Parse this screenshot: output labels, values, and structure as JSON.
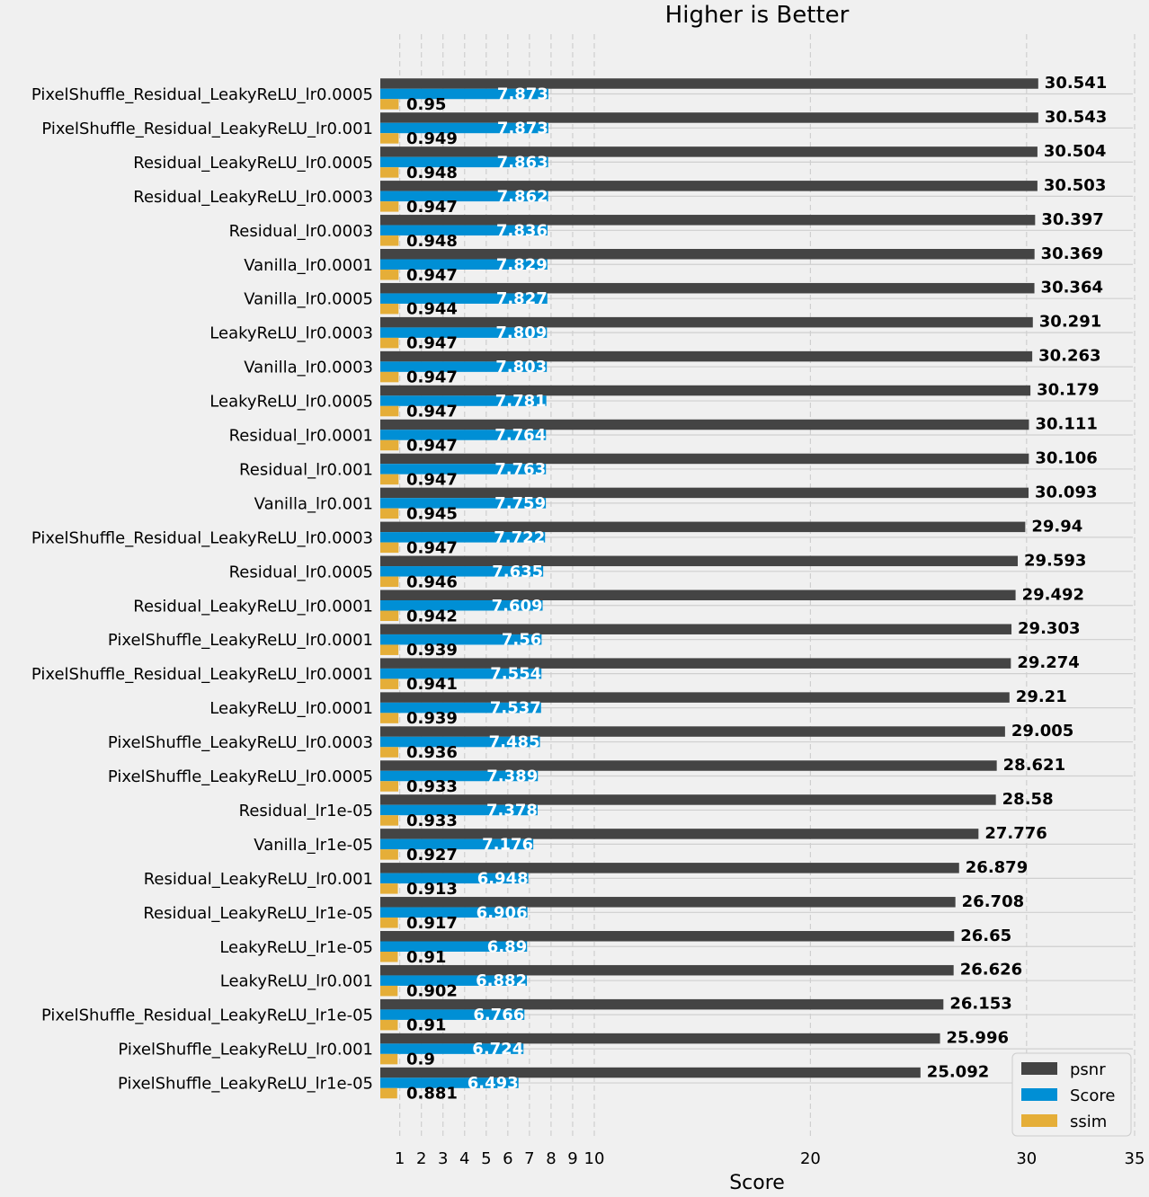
{
  "chart_data": {
    "type": "bar",
    "orientation": "horizontal",
    "title": "Higher is Better",
    "xlabel": "Score",
    "xlim": [
      0.1,
      35
    ],
    "xticks": [
      1,
      2,
      3,
      4,
      5,
      6,
      7,
      8,
      9,
      10,
      20,
      30,
      35
    ],
    "grid": true,
    "legend": "bottom-right",
    "colors": {
      "psnr": "#444444",
      "Score": "#008fd5",
      "ssim": "#e5ae38"
    },
    "categories": [
      "PixelShuffle_Residual_LeakyReLU_lr0.0005",
      "PixelShuffle_Residual_LeakyReLU_lr0.001",
      "Residual_LeakyReLU_lr0.0005",
      "Residual_LeakyReLU_lr0.0003",
      "Residual_lr0.0003",
      "Vanilla_lr0.0001",
      "Vanilla_lr0.0005",
      "LeakyReLU_lr0.0003",
      "Vanilla_lr0.0003",
      "LeakyReLU_lr0.0005",
      "Residual_lr0.0001",
      "Residual_lr0.001",
      "Vanilla_lr0.001",
      "PixelShuffle_Residual_LeakyReLU_lr0.0003",
      "Residual_lr0.0005",
      "Residual_LeakyReLU_lr0.0001",
      "PixelShuffle_LeakyReLU_lr0.0001",
      "PixelShuffle_Residual_LeakyReLU_lr0.0001",
      "LeakyReLU_lr0.0001",
      "PixelShuffle_LeakyReLU_lr0.0003",
      "PixelShuffle_LeakyReLU_lr0.0005",
      "Residual_lr1e-05",
      "Vanilla_lr1e-05",
      "Residual_LeakyReLU_lr0.001",
      "Residual_LeakyReLU_lr1e-05",
      "LeakyReLU_lr1e-05",
      "LeakyReLU_lr0.001",
      "PixelShuffle_Residual_LeakyReLU_lr1e-05",
      "PixelShuffle_LeakyReLU_lr0.001",
      "PixelShuffle_LeakyReLU_lr1e-05"
    ],
    "series": [
      {
        "name": "psnr",
        "values": [
          "30.541",
          "30.543",
          "30.504",
          "30.503",
          "30.397",
          "30.369",
          "30.364",
          "30.291",
          "30.263",
          "30.179",
          "30.111",
          "30.106",
          "30.093",
          "29.94",
          "29.593",
          "29.492",
          "29.303",
          "29.274",
          "29.21",
          "29.005",
          "28.621",
          "28.58",
          "27.776",
          "26.879",
          "26.708",
          "26.65",
          "26.626",
          "26.153",
          "25.996",
          "25.092"
        ]
      },
      {
        "name": "Score",
        "values": [
          "7.873",
          "7.873",
          "7.863",
          "7.862",
          "7.836",
          "7.829",
          "7.827",
          "7.809",
          "7.803",
          "7.781",
          "7.764",
          "7.763",
          "7.759",
          "7.722",
          "7.635",
          "7.609",
          "7.56",
          "7.554",
          "7.537",
          "7.485",
          "7.389",
          "7.378",
          "7.176",
          "6.948",
          "6.906",
          "6.89",
          "6.882",
          "6.766",
          "6.724",
          "6.493"
        ]
      },
      {
        "name": "ssim",
        "values": [
          "0.95",
          "0.949",
          "0.948",
          "0.947",
          "0.948",
          "0.947",
          "0.944",
          "0.947",
          "0.947",
          "0.947",
          "0.947",
          "0.947",
          "0.945",
          "0.947",
          "0.946",
          "0.942",
          "0.939",
          "0.941",
          "0.939",
          "0.936",
          "0.933",
          "0.933",
          "0.927",
          "0.913",
          "0.917",
          "0.91",
          "0.902",
          "0.91",
          "0.9",
          "0.881"
        ]
      }
    ]
  }
}
